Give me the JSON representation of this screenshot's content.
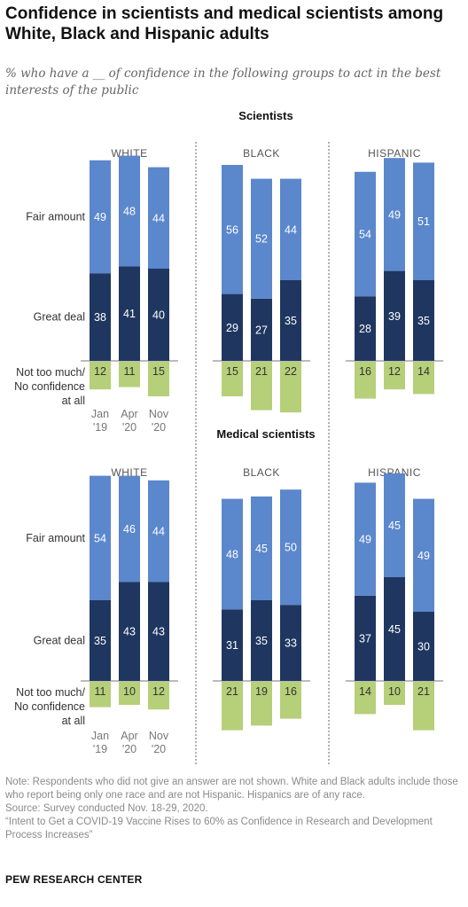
{
  "title": "Confidence in scientists and medical scientists among White, Black and Hispanic adults",
  "subtitle": "% who have a __ of confidence in the following groups to act in the best interests of the public",
  "colors": {
    "great": "#1f3760",
    "fair": "#5b87cc",
    "not": "#b6cf79",
    "divider": "#666666",
    "axis": "#777777"
  },
  "chart_data": {
    "type": "bar",
    "stacked": true,
    "row_labels": {
      "fair": "Fair amount",
      "great": "Great deal",
      "not": "Not too much/ No confidence at all"
    },
    "time_labels": [
      "Jan '19",
      "Apr '20",
      "Nov '20"
    ],
    "panels": [
      {
        "title": "Scientists",
        "groups": [
          {
            "name": "WHITE",
            "great": [
              38,
              41,
              40
            ],
            "fair": [
              49,
              48,
              44
            ],
            "not": [
              12,
              11,
              15
            ]
          },
          {
            "name": "BLACK",
            "great": [
              29,
              27,
              35
            ],
            "fair": [
              56,
              52,
              44
            ],
            "not": [
              15,
              21,
              22
            ]
          },
          {
            "name": "HISPANIC",
            "great": [
              28,
              39,
              35
            ],
            "fair": [
              54,
              49,
              51
            ],
            "not": [
              16,
              12,
              14
            ]
          }
        ]
      },
      {
        "title": "Medical scientists",
        "groups": [
          {
            "name": "WHITE",
            "great": [
              35,
              43,
              43
            ],
            "fair": [
              54,
              46,
              44
            ],
            "not": [
              11,
              10,
              12
            ]
          },
          {
            "name": "BLACK",
            "great": [
              31,
              35,
              33
            ],
            "fair": [
              48,
              45,
              50
            ],
            "not": [
              21,
              19,
              16
            ]
          },
          {
            "name": "HISPANIC",
            "great": [
              37,
              45,
              30
            ],
            "fair": [
              49,
              45,
              49
            ],
            "not": [
              14,
              10,
              21
            ]
          }
        ]
      }
    ]
  },
  "notes": {
    "note": "Note: Respondents who did not give an answer are not shown. White and Black adults include those who report being only one race and are not Hispanic. Hispanics are of any race.",
    "source": "Source: Survey conducted Nov. 18-29, 2020.",
    "report": "“Intent to Get a COVID-19 Vaccine Rises to 60% as Confidence in Research and Development Process Increases”"
  },
  "credit": "PEW RESEARCH CENTER"
}
